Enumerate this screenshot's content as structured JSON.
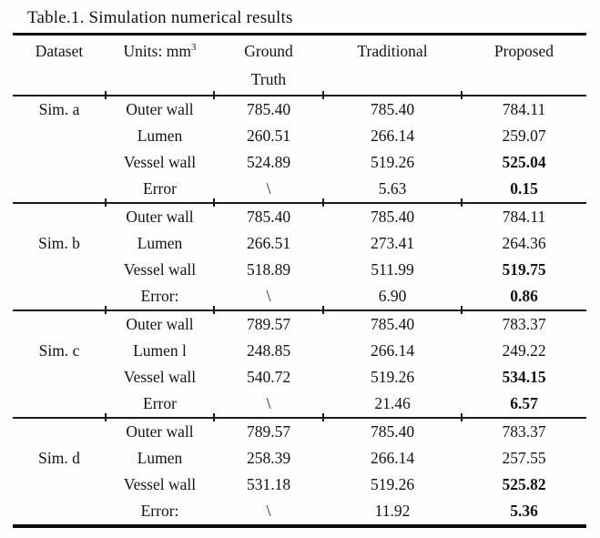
{
  "title": "Table.1. Simulation numerical results",
  "table": {
    "header": {
      "dataset": "Dataset",
      "units_prefix": "Units: mm",
      "units_superscript": "3",
      "ground_truth_line1": "Ground",
      "ground_truth_line2": "Truth",
      "traditional": "Traditional",
      "proposed": "Proposed"
    },
    "groups": [
      {
        "dataset": "Sim. a",
        "dataset_label_row": 0,
        "rows": [
          {
            "structure": "Outer wall",
            "ground_truth": "785.40",
            "traditional": "785.40",
            "proposed": "784.11",
            "proposed_bold": false
          },
          {
            "structure": "Lumen",
            "ground_truth": "260.51",
            "traditional": "266.14",
            "proposed": "259.07",
            "proposed_bold": false
          },
          {
            "structure": "Vessel wall",
            "ground_truth": "524.89",
            "traditional": "519.26",
            "proposed": "525.04",
            "proposed_bold": true
          },
          {
            "structure": "Error",
            "ground_truth": "\\",
            "traditional": "5.63",
            "proposed": "0.15",
            "proposed_bold": true
          }
        ]
      },
      {
        "dataset": "Sim. b",
        "dataset_label_row": 1,
        "rows": [
          {
            "structure": "Outer wall",
            "ground_truth": "785.40",
            "traditional": "785.40",
            "proposed": "784.11",
            "proposed_bold": false
          },
          {
            "structure": "Lumen",
            "ground_truth": "266.51",
            "traditional": "273.41",
            "proposed": "264.36",
            "proposed_bold": false
          },
          {
            "structure": "Vessel wall",
            "ground_truth": "518.89",
            "traditional": "511.99",
            "proposed": "519.75",
            "proposed_bold": true
          },
          {
            "structure": "Error:",
            "ground_truth": "\\",
            "traditional": "6.90",
            "proposed": "0.86",
            "proposed_bold": true
          }
        ]
      },
      {
        "dataset": "Sim. c",
        "dataset_label_row": 1,
        "rows": [
          {
            "structure": "Outer wall",
            "ground_truth": "789.57",
            "traditional": "785.40",
            "proposed": "783.37",
            "proposed_bold": false
          },
          {
            "structure": "Lumen l",
            "ground_truth": "248.85",
            "traditional": "266.14",
            "proposed": "249.22",
            "proposed_bold": false
          },
          {
            "structure": "Vessel wall",
            "ground_truth": "540.72",
            "traditional": "519.26",
            "proposed": "534.15",
            "proposed_bold": true
          },
          {
            "structure": "Error",
            "ground_truth": "\\",
            "traditional": "21.46",
            "proposed": "6.57",
            "proposed_bold": true
          }
        ]
      },
      {
        "dataset": "Sim. d",
        "dataset_label_row": 1,
        "rows": [
          {
            "structure": "Outer wall",
            "ground_truth": "789.57",
            "traditional": "785.40",
            "proposed": "783.37",
            "proposed_bold": false
          },
          {
            "structure": "Lumen",
            "ground_truth": "258.39",
            "traditional": "266.14",
            "proposed": "257.55",
            "proposed_bold": false
          },
          {
            "structure": "Vessel wall",
            "ground_truth": "531.18",
            "traditional": "519.26",
            "proposed": "525.82",
            "proposed_bold": true
          },
          {
            "structure": "Error:",
            "ground_truth": "\\",
            "traditional": "11.92",
            "proposed": "5.36",
            "proposed_bold": true
          }
        ]
      }
    ]
  }
}
